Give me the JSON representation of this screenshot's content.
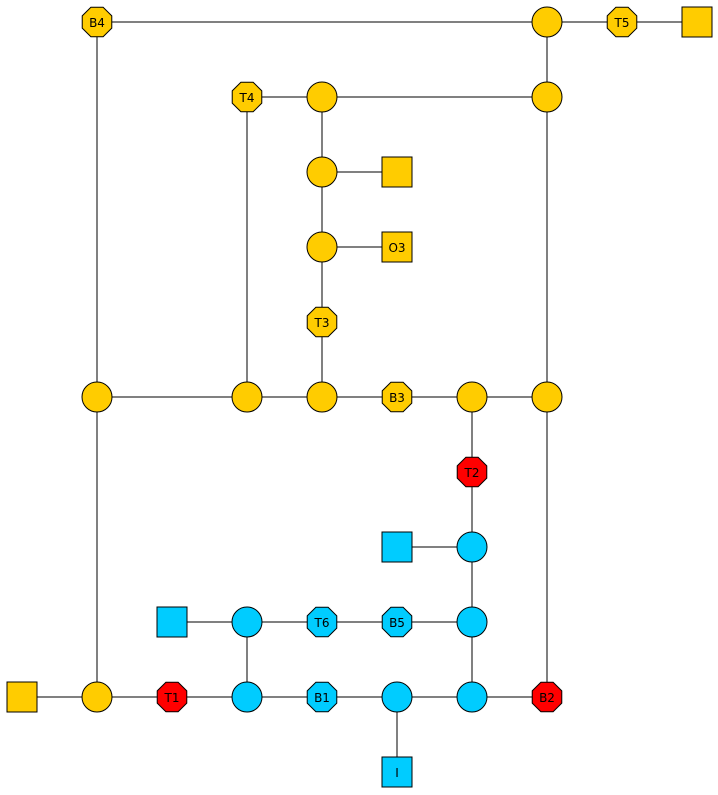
{
  "colors": {
    "yellow": "#FFCC00",
    "cyan": "#00CCFF",
    "red": "#FF0000"
  },
  "nodes": [
    {
      "id": "b4",
      "shape": "octagon",
      "color": "yellow",
      "label": "B4"
    },
    {
      "id": "n_top_right",
      "shape": "circle",
      "color": "yellow",
      "label": ""
    },
    {
      "id": "t5",
      "shape": "octagon",
      "color": "yellow",
      "label": "T5"
    },
    {
      "id": "sq_top_right",
      "shape": "square",
      "color": "yellow",
      "label": ""
    },
    {
      "id": "t4",
      "shape": "octagon",
      "color": "yellow",
      "label": "T4"
    },
    {
      "id": "n_t4_right",
      "shape": "circle",
      "color": "yellow",
      "label": ""
    },
    {
      "id": "n_right_upper",
      "shape": "circle",
      "color": "yellow",
      "label": ""
    },
    {
      "id": "n_mid_1",
      "shape": "circle",
      "color": "yellow",
      "label": ""
    },
    {
      "id": "sq_mid_1",
      "shape": "square",
      "color": "yellow",
      "label": ""
    },
    {
      "id": "n_mid_2",
      "shape": "circle",
      "color": "yellow",
      "label": ""
    },
    {
      "id": "o3",
      "shape": "square",
      "color": "yellow",
      "label": "O3"
    },
    {
      "id": "t3",
      "shape": "octagon",
      "color": "yellow",
      "label": "T3"
    },
    {
      "id": "n_left_mid",
      "shape": "circle",
      "color": "yellow",
      "label": ""
    },
    {
      "id": "n_t4_bottom",
      "shape": "circle",
      "color": "yellow",
      "label": ""
    },
    {
      "id": "n_t3_bottom",
      "shape": "circle",
      "color": "yellow",
      "label": ""
    },
    {
      "id": "b3",
      "shape": "octagon",
      "color": "yellow",
      "label": "B3"
    },
    {
      "id": "n_b3_right",
      "shape": "circle",
      "color": "yellow",
      "label": ""
    },
    {
      "id": "n_right_mid",
      "shape": "circle",
      "color": "yellow",
      "label": ""
    },
    {
      "id": "t2",
      "shape": "octagon",
      "color": "red",
      "label": "T2"
    },
    {
      "id": "sq_cyan_1",
      "shape": "square",
      "color": "cyan",
      "label": ""
    },
    {
      "id": "n_cyan_1",
      "shape": "circle",
      "color": "cyan",
      "label": ""
    },
    {
      "id": "sq_cyan_2",
      "shape": "square",
      "color": "cyan",
      "label": ""
    },
    {
      "id": "n_cyan_2",
      "shape": "circle",
      "color": "cyan",
      "label": ""
    },
    {
      "id": "t6",
      "shape": "octagon",
      "color": "cyan",
      "label": "T6"
    },
    {
      "id": "b5",
      "shape": "octagon",
      "color": "cyan",
      "label": "B5"
    },
    {
      "id": "n_cyan_3",
      "shape": "circle",
      "color": "cyan",
      "label": ""
    },
    {
      "id": "sq_bottom_left",
      "shape": "square",
      "color": "yellow",
      "label": ""
    },
    {
      "id": "n_bottom_left",
      "shape": "circle",
      "color": "yellow",
      "label": ""
    },
    {
      "id": "t1",
      "shape": "octagon",
      "color": "red",
      "label": "T1"
    },
    {
      "id": "n_cyan_4",
      "shape": "circle",
      "color": "cyan",
      "label": ""
    },
    {
      "id": "b1",
      "shape": "octagon",
      "color": "cyan",
      "label": "B1"
    },
    {
      "id": "n_cyan_5",
      "shape": "circle",
      "color": "cyan",
      "label": ""
    },
    {
      "id": "n_cyan_6",
      "shape": "circle",
      "color": "cyan",
      "label": ""
    },
    {
      "id": "b2",
      "shape": "octagon",
      "color": "red",
      "label": "B2"
    },
    {
      "id": "i",
      "shape": "square",
      "color": "cyan",
      "label": "I"
    }
  ],
  "edges": [
    [
      "b4",
      "n_top_right"
    ],
    [
      "n_top_right",
      "t5"
    ],
    [
      "t5",
      "sq_top_right"
    ],
    [
      "n_top_right",
      "n_right_upper"
    ],
    [
      "t4",
      "n_t4_right"
    ],
    [
      "n_t4_right",
      "n_right_upper"
    ],
    [
      "n_t4_right",
      "n_mid_1"
    ],
    [
      "n_mid_1",
      "sq_mid_1"
    ],
    [
      "n_mid_1",
      "n_mid_2"
    ],
    [
      "n_mid_2",
      "o3"
    ],
    [
      "n_mid_2",
      "t3"
    ],
    [
      "t3",
      "n_t3_bottom"
    ],
    [
      "b4",
      "n_left_mid"
    ],
    [
      "t4",
      "n_t4_bottom"
    ],
    [
      "n_left_mid",
      "n_t4_bottom"
    ],
    [
      "n_t4_bottom",
      "n_t3_bottom"
    ],
    [
      "n_t3_bottom",
      "b3"
    ],
    [
      "b3",
      "n_b3_right"
    ],
    [
      "n_b3_right",
      "n_right_mid"
    ],
    [
      "n_right_upper",
      "n_right_mid"
    ],
    [
      "n_b3_right",
      "t2"
    ],
    [
      "t2",
      "n_cyan_1"
    ],
    [
      "sq_cyan_1",
      "n_cyan_1"
    ],
    [
      "n_cyan_1",
      "n_cyan_3"
    ],
    [
      "sq_cyan_2",
      "n_cyan_2"
    ],
    [
      "n_cyan_2",
      "t6"
    ],
    [
      "t6",
      "b5"
    ],
    [
      "b5",
      "n_cyan_3"
    ],
    [
      "n_left_mid",
      "n_bottom_left"
    ],
    [
      "sq_bottom_left",
      "n_bottom_left"
    ],
    [
      "n_bottom_left",
      "t1"
    ],
    [
      "t1",
      "n_cyan_4"
    ],
    [
      "n_cyan_2",
      "n_cyan_4"
    ],
    [
      "n_cyan_4",
      "b1"
    ],
    [
      "b1",
      "n_cyan_5"
    ],
    [
      "n_cyan_5",
      "n_cyan_6"
    ],
    [
      "n_cyan_3",
      "n_cyan_6"
    ],
    [
      "n_cyan_6",
      "b2"
    ],
    [
      "n_right_mid",
      "b2"
    ],
    [
      "n_cyan_5",
      "i"
    ]
  ]
}
